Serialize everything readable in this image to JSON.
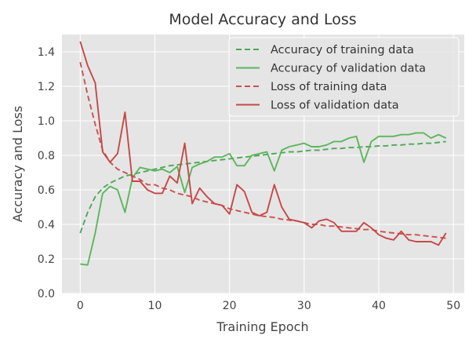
{
  "chart_data": {
    "type": "line",
    "title": "Model Accuracy and Loss",
    "xlabel": "Training Epoch",
    "ylabel": "Accuracy and Loss",
    "xlim": [
      -2.45,
      51.45
    ],
    "ylim": [
      0.0,
      1.5
    ],
    "xticks": [
      0,
      10,
      20,
      30,
      40,
      50
    ],
    "yticks": [
      0.0,
      0.2,
      0.4,
      0.6,
      0.8,
      1.0,
      1.2,
      1.4
    ],
    "xtick_labels": [
      "0",
      "10",
      "20",
      "30",
      "40",
      "50"
    ],
    "ytick_labels": [
      "0.0",
      "0.2",
      "0.4",
      "0.6",
      "0.8",
      "1.0",
      "1.2",
      "1.4"
    ],
    "grid": true,
    "legend_position": "top-right",
    "colors": {
      "train_acc": "#4ea85a",
      "val_acc": "#5cb65c",
      "train_loss": "#cc5050",
      "val_loss": "#c64848",
      "background": "#e5e5e5",
      "grid": "#ffffff",
      "text": "#444444"
    },
    "x": [
      0,
      1,
      2,
      3,
      4,
      5,
      6,
      7,
      8,
      9,
      10,
      11,
      12,
      13,
      14,
      15,
      16,
      17,
      18,
      19,
      20,
      21,
      22,
      23,
      24,
      25,
      26,
      27,
      28,
      29,
      30,
      31,
      32,
      33,
      34,
      35,
      36,
      37,
      38,
      39,
      40,
      41,
      42,
      43,
      44,
      45,
      46,
      47,
      48,
      49
    ],
    "series": [
      {
        "name": "Accuracy of training data",
        "style": "dashed",
        "color": "#4ea85a",
        "values": [
          0.35,
          0.47,
          0.56,
          0.61,
          0.64,
          0.66,
          0.68,
          0.69,
          0.7,
          0.71,
          0.72,
          0.73,
          0.74,
          0.745,
          0.75,
          0.755,
          0.76,
          0.765,
          0.77,
          0.775,
          0.78,
          0.785,
          0.79,
          0.795,
          0.8,
          0.805,
          0.81,
          0.815,
          0.82,
          0.82,
          0.825,
          0.83,
          0.83,
          0.835,
          0.84,
          0.84,
          0.845,
          0.845,
          0.85,
          0.85,
          0.855,
          0.855,
          0.86,
          0.86,
          0.865,
          0.865,
          0.87,
          0.87,
          0.875,
          0.88
        ]
      },
      {
        "name": "Accuracy of validation data",
        "style": "solid",
        "color": "#5cb65c",
        "values": [
          0.17,
          0.165,
          0.35,
          0.58,
          0.62,
          0.6,
          0.47,
          0.67,
          0.73,
          0.72,
          0.71,
          0.72,
          0.7,
          0.735,
          0.585,
          0.73,
          0.75,
          0.765,
          0.79,
          0.79,
          0.81,
          0.74,
          0.74,
          0.8,
          0.81,
          0.82,
          0.71,
          0.83,
          0.85,
          0.86,
          0.87,
          0.85,
          0.85,
          0.86,
          0.88,
          0.88,
          0.9,
          0.91,
          0.76,
          0.88,
          0.91,
          0.91,
          0.91,
          0.92,
          0.92,
          0.93,
          0.93,
          0.9,
          0.92,
          0.9
        ]
      },
      {
        "name": "Loss of training data",
        "style": "dashed",
        "color": "#cc5050",
        "values": [
          1.34,
          1.15,
          0.98,
          0.83,
          0.76,
          0.72,
          0.7,
          0.68,
          0.66,
          0.63,
          0.63,
          0.61,
          0.6,
          0.58,
          0.57,
          0.56,
          0.54,
          0.53,
          0.52,
          0.51,
          0.49,
          0.48,
          0.47,
          0.46,
          0.45,
          0.445,
          0.44,
          0.43,
          0.425,
          0.42,
          0.41,
          0.4,
          0.4,
          0.39,
          0.39,
          0.385,
          0.38,
          0.375,
          0.37,
          0.37,
          0.36,
          0.355,
          0.35,
          0.345,
          0.34,
          0.34,
          0.335,
          0.33,
          0.325,
          0.32
        ]
      },
      {
        "name": "Loss of validation data",
        "style": "solid",
        "color": "#c64848",
        "values": [
          1.46,
          1.32,
          1.22,
          0.82,
          0.76,
          0.81,
          1.05,
          0.65,
          0.65,
          0.6,
          0.58,
          0.58,
          0.68,
          0.64,
          0.87,
          0.52,
          0.61,
          0.56,
          0.52,
          0.51,
          0.46,
          0.63,
          0.59,
          0.47,
          0.45,
          0.47,
          0.63,
          0.5,
          0.43,
          0.42,
          0.41,
          0.38,
          0.42,
          0.43,
          0.41,
          0.36,
          0.36,
          0.36,
          0.41,
          0.38,
          0.34,
          0.32,
          0.31,
          0.36,
          0.31,
          0.3,
          0.3,
          0.3,
          0.28,
          0.35
        ]
      }
    ]
  }
}
